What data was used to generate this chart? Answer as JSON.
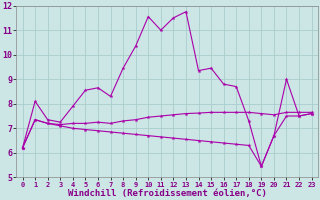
{
  "xlabel": "Windchill (Refroidissement éolien,°C)",
  "background_color": "#cce5e5",
  "grid_color": "#aacccc",
  "line_color": "#aa00aa",
  "xlim": [
    -0.5,
    23.5
  ],
  "ylim": [
    5,
    12
  ],
  "yticks": [
    5,
    6,
    7,
    8,
    9,
    10,
    11,
    12
  ],
  "xticks": [
    0,
    1,
    2,
    3,
    4,
    5,
    6,
    7,
    8,
    9,
    10,
    11,
    12,
    13,
    14,
    15,
    16,
    17,
    18,
    19,
    20,
    21,
    22,
    23
  ],
  "line1_x": [
    0,
    1,
    2,
    3,
    4,
    5,
    6,
    7,
    8,
    9,
    10,
    11,
    12,
    13,
    14,
    15,
    16,
    17,
    18,
    19,
    20,
    21,
    22,
    23
  ],
  "line1_y": [
    6.2,
    8.1,
    7.35,
    7.25,
    7.9,
    8.55,
    8.65,
    8.3,
    9.45,
    10.35,
    11.55,
    11.0,
    11.5,
    11.75,
    9.35,
    9.45,
    8.8,
    8.7,
    7.3,
    5.45,
    6.7,
    9.0,
    7.5,
    7.6
  ],
  "line2_x": [
    0,
    1,
    2,
    3,
    4,
    5,
    6,
    7,
    8,
    9,
    10,
    11,
    12,
    13,
    14,
    15,
    16,
    17,
    18,
    19,
    20,
    21,
    22,
    23
  ],
  "line2_y": [
    6.2,
    7.35,
    7.2,
    7.15,
    7.2,
    7.2,
    7.25,
    7.2,
    7.3,
    7.35,
    7.45,
    7.5,
    7.55,
    7.6,
    7.62,
    7.65,
    7.65,
    7.65,
    7.65,
    7.6,
    7.55,
    7.65,
    7.65,
    7.65
  ],
  "line3_x": [
    0,
    1,
    2,
    3,
    4,
    5,
    6,
    7,
    8,
    9,
    10,
    11,
    12,
    13,
    14,
    15,
    16,
    17,
    18,
    19,
    20,
    21,
    22,
    23
  ],
  "line3_y": [
    6.2,
    7.35,
    7.2,
    7.1,
    7.0,
    6.95,
    6.9,
    6.85,
    6.8,
    6.75,
    6.7,
    6.65,
    6.6,
    6.55,
    6.5,
    6.45,
    6.4,
    6.35,
    6.3,
    5.45,
    6.7,
    7.5,
    7.5,
    7.6
  ]
}
